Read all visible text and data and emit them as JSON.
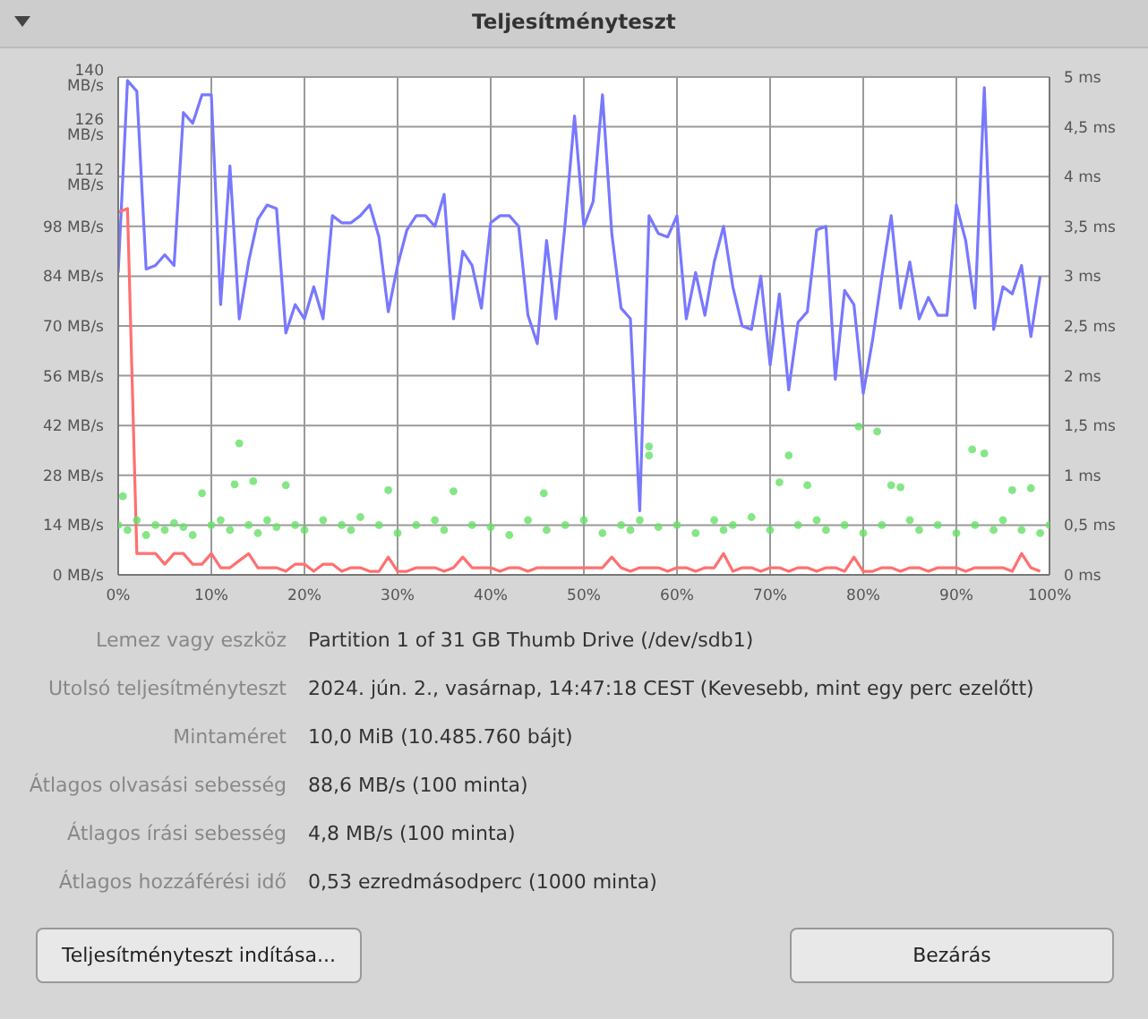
{
  "chart_data": {
    "type": "line",
    "title": "Teljesítményteszt",
    "x": [
      0,
      1,
      2,
      3,
      4,
      5,
      6,
      7,
      8,
      9,
      10,
      11,
      12,
      13,
      14,
      15,
      16,
      17,
      18,
      19,
      20,
      21,
      22,
      23,
      24,
      25,
      26,
      27,
      28,
      29,
      30,
      31,
      32,
      33,
      34,
      35,
      36,
      37,
      38,
      39,
      40,
      41,
      42,
      43,
      44,
      45,
      46,
      47,
      48,
      49,
      50,
      51,
      52,
      53,
      54,
      55,
      56,
      57,
      58,
      59,
      60,
      61,
      62,
      63,
      64,
      65,
      66,
      67,
      68,
      69,
      70,
      71,
      72,
      73,
      74,
      75,
      76,
      77,
      78,
      79,
      80,
      81,
      82,
      83,
      84,
      85,
      86,
      87,
      88,
      89,
      90,
      91,
      92,
      93,
      94,
      95,
      96,
      97,
      98,
      99
    ],
    "series": [
      {
        "color": "#7878ff",
        "values": [
          85,
          139,
          136,
          86,
          87,
          90,
          87,
          130,
          127,
          135,
          135,
          76,
          115,
          72,
          88,
          100,
          104,
          103,
          68,
          76,
          72,
          81,
          72,
          101,
          99,
          99,
          101,
          104,
          95,
          74,
          87,
          97,
          101,
          101,
          98,
          107,
          72,
          91,
          87,
          75,
          99,
          101,
          101,
          98,
          73,
          65,
          94,
          72,
          99,
          129,
          98,
          105,
          135,
          96,
          75,
          72,
          18,
          101,
          96,
          95,
          101,
          72,
          85,
          73,
          88,
          98,
          81,
          70,
          69,
          84,
          59,
          79,
          52,
          71,
          74,
          97,
          98,
          55,
          80,
          76,
          51,
          66,
          84,
          101,
          75,
          88,
          72,
          78,
          73,
          73,
          104,
          94,
          75,
          137,
          69,
          81,
          79,
          87,
          67,
          84
        ]
      },
      {
        "color": "#ff7070",
        "values": [
          102,
          103,
          6,
          6,
          6,
          3,
          6,
          6,
          3,
          3,
          6,
          2,
          2,
          4,
          6,
          2,
          2,
          2,
          1,
          3,
          3,
          1,
          3,
          3,
          1,
          2,
          2,
          1,
          1,
          5,
          1,
          1,
          2,
          2,
          2,
          1,
          2,
          5,
          2,
          2,
          2,
          1,
          2,
          2,
          1,
          2,
          2,
          2,
          2,
          2,
          2,
          2,
          2,
          5,
          2,
          1,
          2,
          2,
          2,
          1,
          2,
          2,
          1,
          2,
          2,
          6,
          1,
          2,
          2,
          1,
          2,
          2,
          1,
          2,
          2,
          1,
          2,
          2,
          1,
          5,
          1,
          1,
          2,
          2,
          1,
          2,
          2,
          1,
          2,
          2,
          2,
          1,
          2,
          2,
          2,
          2,
          1,
          6,
          2,
          1
        ]
      },
      {
        "type": "scatter",
        "axis": "y2",
        "marker": "circle",
        "color": "#66e066",
        "x": [
          0,
          0.5,
          1,
          2,
          3,
          4,
          5,
          6,
          7,
          8,
          9,
          10,
          11,
          12,
          12.5,
          13,
          14,
          14.5,
          15,
          16,
          17,
          18,
          19,
          20,
          22,
          24,
          25,
          26,
          28,
          29,
          30,
          32,
          34,
          35,
          36,
          38,
          40,
          42,
          44,
          45.7,
          46,
          48,
          50,
          52,
          54,
          55,
          56,
          57,
          57,
          58,
          60,
          62,
          64,
          65,
          66,
          68,
          70,
          71,
          72,
          73,
          74,
          75,
          76,
          78,
          79.5,
          80,
          81.5,
          82,
          83,
          84,
          85,
          86,
          88,
          90,
          91.7,
          92,
          93,
          94,
          95,
          96,
          97,
          98,
          99,
          100
        ],
        "values": [
          0.5,
          0.79,
          0.45,
          0.55,
          0.4,
          0.5,
          0.45,
          0.52,
          0.48,
          0.4,
          0.82,
          0.5,
          0.55,
          0.45,
          0.91,
          1.32,
          0.5,
          0.94,
          0.42,
          0.55,
          0.48,
          0.9,
          0.5,
          0.45,
          0.55,
          0.5,
          0.45,
          0.58,
          0.5,
          0.85,
          0.42,
          0.5,
          0.55,
          0.45,
          0.84,
          0.5,
          0.48,
          0.4,
          0.55,
          0.82,
          0.45,
          0.5,
          0.55,
          0.42,
          0.5,
          0.45,
          0.55,
          1.29,
          1.2,
          0.48,
          0.5,
          0.42,
          0.55,
          0.45,
          0.5,
          0.58,
          0.45,
          0.93,
          1.2,
          0.5,
          0.9,
          0.55,
          0.45,
          0.5,
          1.49,
          0.42,
          1.44,
          0.5,
          0.9,
          0.88,
          0.55,
          0.45,
          0.5,
          0.42,
          1.26,
          0.5,
          1.22,
          0.45,
          0.55,
          0.85,
          0.45,
          0.87,
          0.42,
          0.5
        ]
      }
    ],
    "xlim": [
      0,
      100
    ],
    "xticks": [
      {
        "value": 0,
        "label": "0%"
      },
      {
        "value": 10,
        "label": "10%"
      },
      {
        "value": 20,
        "label": "20%"
      },
      {
        "value": 30,
        "label": "30%"
      },
      {
        "value": 40,
        "label": "40%"
      },
      {
        "value": 50,
        "label": "50%"
      },
      {
        "value": 60,
        "label": "60%"
      },
      {
        "value": 70,
        "label": "70%"
      },
      {
        "value": 80,
        "label": "80%"
      },
      {
        "value": 90,
        "label": "90%"
      },
      {
        "value": 100,
        "label": "100%"
      }
    ],
    "ylim": [
      0,
      140
    ],
    "yticks": [
      {
        "value": 0,
        "label": "0 MB/s"
      },
      {
        "value": 14,
        "label": "14 MB/s"
      },
      {
        "value": 28,
        "label": "28 MB/s"
      },
      {
        "value": 42,
        "label": "42 MB/s"
      },
      {
        "value": 56,
        "label": "56 MB/s"
      },
      {
        "value": 70,
        "label": "70 MB/s"
      },
      {
        "value": 84,
        "label": "84 MB/s"
      },
      {
        "value": 98,
        "label": "98 MB/s"
      },
      {
        "value": 112,
        "label": "112 MB/s"
      },
      {
        "value": 126,
        "label": "126 MB/s"
      },
      {
        "value": 140,
        "label": "140 MB/s"
      }
    ],
    "y2lim": [
      0,
      5
    ],
    "y2ticks": [
      {
        "value": 0,
        "label": "0 ms"
      },
      {
        "value": 0.5,
        "label": "0,5 ms"
      },
      {
        "value": 1,
        "label": "1 ms"
      },
      {
        "value": 1.5,
        "label": "1,5 ms"
      },
      {
        "value": 2,
        "label": "2 ms"
      },
      {
        "value": 2.5,
        "label": "2,5 ms"
      },
      {
        "value": 3,
        "label": "3 ms"
      },
      {
        "value": 3.5,
        "label": "3,5 ms"
      },
      {
        "value": 4,
        "label": "4 ms"
      },
      {
        "value": 4.5,
        "label": "4,5 ms"
      },
      {
        "value": 5,
        "label": "5 ms"
      }
    ],
    "grid": true,
    "marker": "none",
    "line_style": "solid",
    "annotations": [
      "Lemez vagy eszköz",
      "Partition 1 of 31 GB Thumb Drive (/dev/sdb1)",
      "Utolsó teljesítményteszt",
      "2024. jún. 2., vasárnap, 14:47:18 CEST (Kevesebb, mint egy perc ezelőtt)",
      "Mintaméret",
      "10,0 MiB (10.485.760 bájt)",
      "Átlagos olvasási sebesség",
      "88,6 MB/s (100 minta)",
      "Átlagos írási sebesség",
      "4,8 MB/s (100 minta)",
      "Átlagos hozzáférési idő",
      "0,53 ezredmásodperc (1000 minta)",
      "Teljesítményteszt indítása...",
      "Bezárás"
    ]
  }
}
